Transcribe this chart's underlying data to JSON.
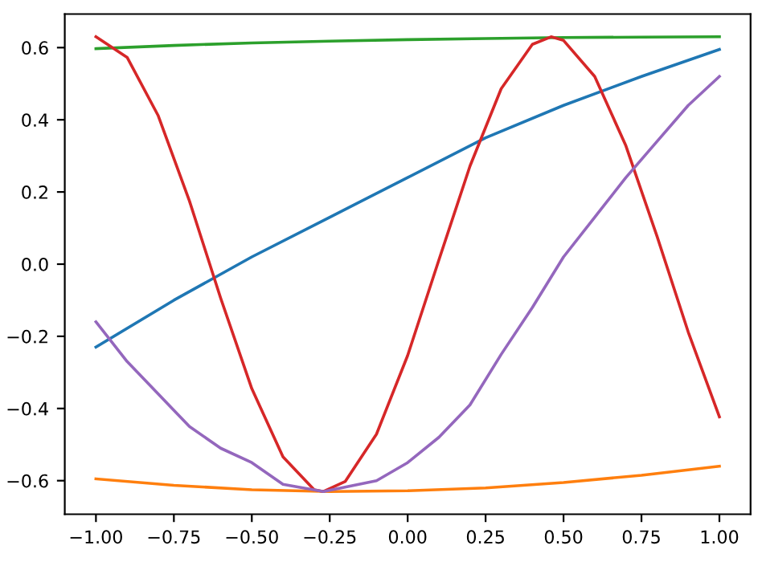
{
  "chart_data": {
    "type": "line",
    "xlim": [
      -1.1,
      1.1
    ],
    "ylim": [
      -0.693,
      0.693
    ],
    "xticks": [
      {
        "value": -1,
        "label": "−1.00"
      },
      {
        "value": -0.75,
        "label": "−0.75"
      },
      {
        "value": -0.5,
        "label": "−0.50"
      },
      {
        "value": -0.25,
        "label": "−0.25"
      },
      {
        "value": 0,
        "label": "0.00"
      },
      {
        "value": 0.25,
        "label": "0.25"
      },
      {
        "value": 0.5,
        "label": "0.50"
      },
      {
        "value": 0.75,
        "label": "0.75"
      },
      {
        "value": 1,
        "label": "1.00"
      }
    ],
    "yticks": [
      {
        "value": -0.6,
        "label": "−0.6"
      },
      {
        "value": -0.4,
        "label": "−0.4"
      },
      {
        "value": -0.2,
        "label": "−0.2"
      },
      {
        "value": 0,
        "label": "0.0"
      },
      {
        "value": 0.2,
        "label": "0.2"
      },
      {
        "value": 0.4,
        "label": "0.4"
      },
      {
        "value": 0.6,
        "label": "0.6"
      }
    ],
    "series": [
      {
        "color": "#1f77b4",
        "x": [
          -1,
          -0.75,
          -0.5,
          -0.25,
          0,
          0.25,
          0.5,
          0.75,
          1
        ],
        "values": [
          -0.23,
          -0.1,
          0.02,
          0.13,
          0.24,
          0.35,
          0.44,
          0.52,
          0.595
        ]
      },
      {
        "color": "#ff7f0e",
        "x": [
          -1,
          -0.75,
          -0.5,
          -0.25,
          0,
          0.25,
          0.5,
          0.75,
          1
        ],
        "values": [
          -0.595,
          -0.613,
          -0.625,
          -0.63,
          -0.628,
          -0.62,
          -0.605,
          -0.585,
          -0.56
        ]
      },
      {
        "color": "#2ca02c",
        "x": [
          -1,
          -0.75,
          -0.5,
          -0.25,
          0,
          0.25,
          0.5,
          0.75,
          1
        ],
        "values": [
          0.597,
          0.606,
          0.613,
          0.618,
          0.622,
          0.625,
          0.628,
          0.629,
          0.63
        ]
      },
      {
        "color": "#d62728",
        "x": [
          -1,
          -0.9,
          -0.8,
          -0.7,
          -0.6,
          -0.5,
          -0.4,
          -0.3,
          -0.27,
          -0.2,
          -0.1,
          0,
          0.1,
          0.2,
          0.3,
          0.4,
          0.46,
          0.5,
          0.6,
          0.7,
          0.8,
          0.9,
          1
        ],
        "values": [
          0.63,
          0.573,
          0.411,
          0.175,
          -0.094,
          -0.345,
          -0.534,
          -0.625,
          -0.63,
          -0.602,
          -0.471,
          -0.253,
          0.011,
          0.272,
          0.486,
          0.609,
          0.63,
          0.62,
          0.52,
          0.328,
          0.077,
          -0.188,
          -0.423
        ]
      },
      {
        "color": "#9467bd",
        "x": [
          -1,
          -0.9,
          -0.8,
          -0.7,
          -0.6,
          -0.5,
          -0.4,
          -0.27,
          -0.1,
          0,
          0.1,
          0.2,
          0.3,
          0.4,
          0.5,
          0.6,
          0.7,
          0.8,
          0.9,
          1
        ],
        "values": [
          -0.16,
          -0.27,
          -0.36,
          -0.45,
          -0.51,
          -0.55,
          -0.61,
          -0.63,
          -0.6,
          -0.55,
          -0.48,
          -0.39,
          -0.25,
          -0.12,
          0.02,
          0.13,
          0.24,
          0.34,
          0.44,
          0.52
        ]
      }
    ]
  }
}
